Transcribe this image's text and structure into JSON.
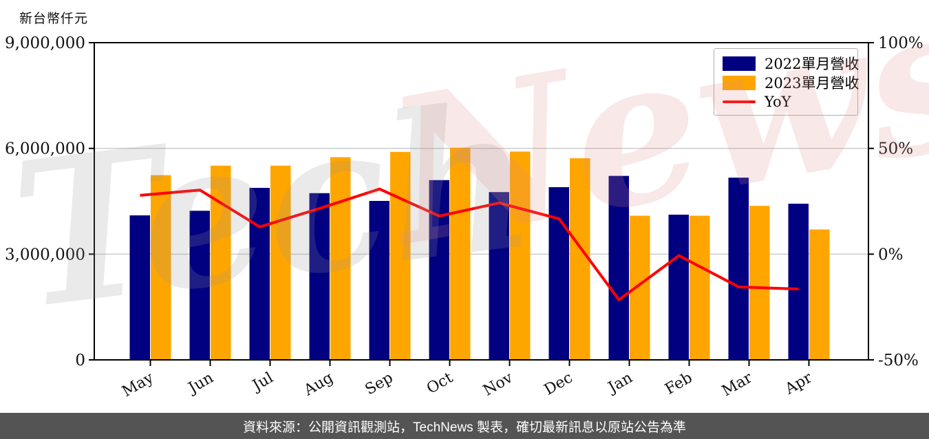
{
  "title": "新台幣仟元",
  "watermark": {
    "gray_text": "Tech",
    "pink_text": "News"
  },
  "legend": {
    "items": [
      {
        "label": "2022單月營收",
        "color": "#000080",
        "type": "bar"
      },
      {
        "label": "2023單月營收",
        "color": "#FFA500",
        "type": "bar"
      },
      {
        "label": "YoY",
        "color": "#FF0000",
        "type": "line"
      }
    ]
  },
  "footer": {
    "text": "資料來源：公開資訊觀測站，TechNews 製表，確切最新訊息以原站公告為準"
  },
  "chart_data": {
    "type": "bar",
    "subtype": "grouped bars + line on secondary axis",
    "categories": [
      "May",
      "Jun",
      "Jul",
      "Aug",
      "Sep",
      "Oct",
      "Nov",
      "Dec",
      "Jan",
      "Feb",
      "Mar",
      "Apr"
    ],
    "series": [
      {
        "name": "2022單月營收",
        "type": "bar",
        "axis": "left",
        "color": "#000080",
        "values": [
          4100000,
          4230000,
          4880000,
          4730000,
          4510000,
          5100000,
          4760000,
          4900000,
          5220000,
          4120000,
          5170000,
          4430000
        ]
      },
      {
        "name": "2023單月營收",
        "type": "bar",
        "axis": "left",
        "color": "#FFA500",
        "values": [
          5240000,
          5510000,
          5510000,
          5750000,
          5900000,
          6020000,
          5910000,
          5720000,
          4090000,
          4090000,
          4370000,
          3700000
        ]
      },
      {
        "name": "YoY",
        "type": "line",
        "axis": "right",
        "color": "#FF0000",
        "values": [
          27.8,
          30.3,
          12.9,
          21.6,
          30.8,
          18.0,
          24.2,
          16.7,
          -21.6,
          -0.7,
          -15.5,
          -16.5
        ]
      }
    ],
    "left_axis": {
      "label": "新台幣仟元",
      "min": 0,
      "max": 9000000,
      "ticks": [
        0,
        3000000,
        6000000,
        9000000
      ],
      "tick_labels": [
        "0",
        "3,000,000",
        "6,000,000",
        "9,000,000"
      ]
    },
    "right_axis": {
      "min": -50,
      "max": 100,
      "unit": "%",
      "ticks": [
        -50,
        0,
        50,
        100
      ],
      "tick_labels": [
        "-50%",
        "0%",
        "50%",
        "100%"
      ]
    },
    "grid": "horizontal gridlines at interior ticks",
    "legend_position": "upper right"
  }
}
